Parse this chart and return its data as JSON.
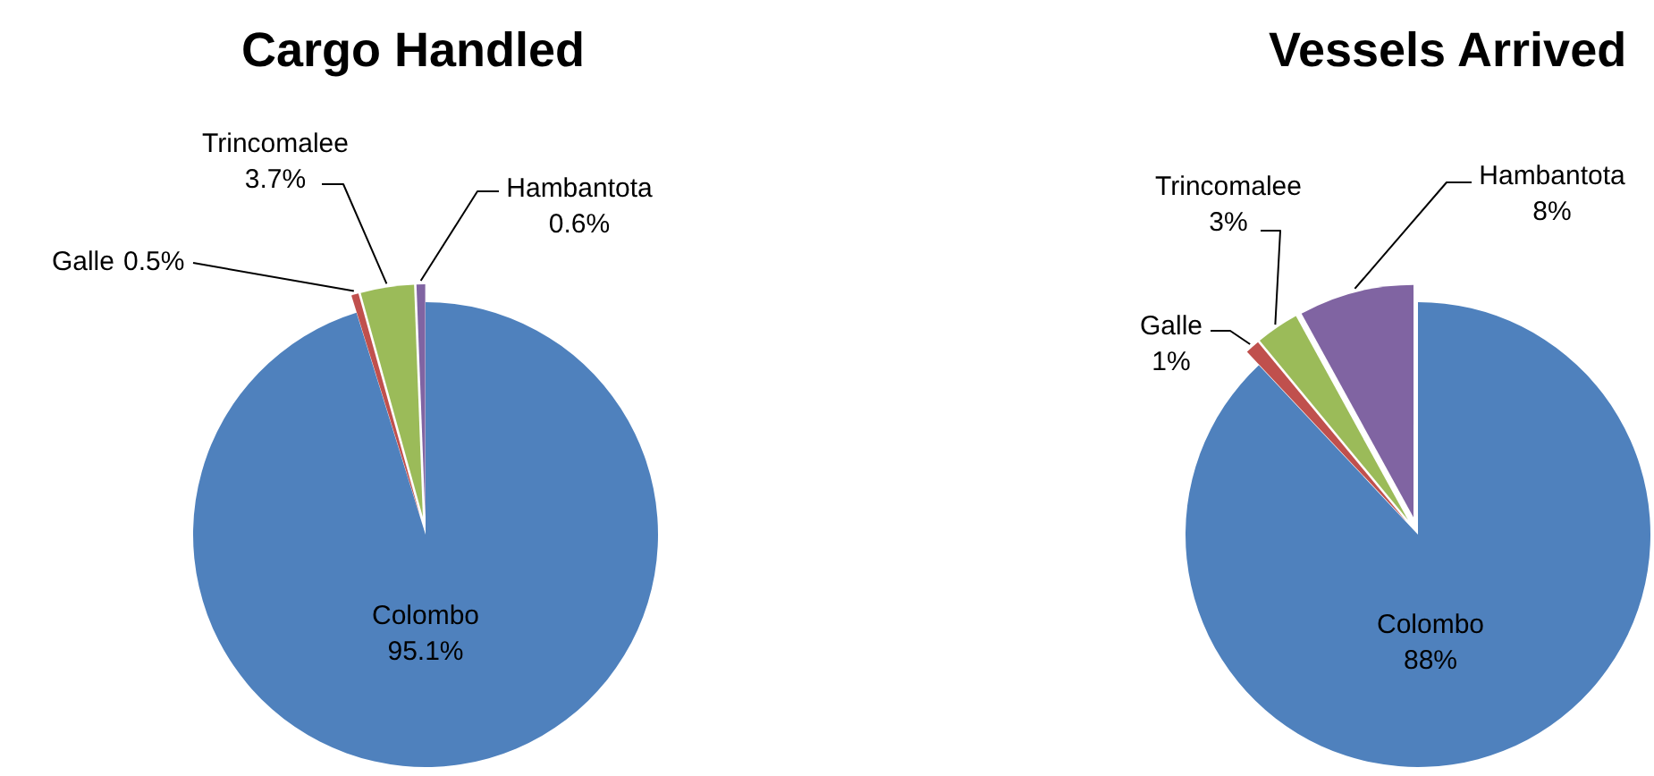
{
  "chart_data": [
    {
      "type": "pie",
      "title": "Cargo Handled",
      "categories": [
        "Colombo",
        "Galle",
        "Trincomalee",
        "Hambantota"
      ],
      "values": [
        95.1,
        0.5,
        3.7,
        0.6
      ],
      "value_labels": [
        "95.1%",
        "0.5%",
        "3.7%",
        "0.6%"
      ],
      "colors": [
        "#4f81bd",
        "#c0504d",
        "#9bbb59",
        "#8064a2"
      ]
    },
    {
      "type": "pie",
      "title": "Vessels Arrived",
      "categories": [
        "Colombo",
        "Galle",
        "Trincomalee",
        "Hambantota"
      ],
      "values": [
        88,
        1,
        3,
        8
      ],
      "value_labels": [
        "88%",
        "1%",
        "3%",
        "8%"
      ],
      "colors": [
        "#4f81bd",
        "#c0504d",
        "#9bbb59",
        "#8064a2"
      ]
    }
  ]
}
